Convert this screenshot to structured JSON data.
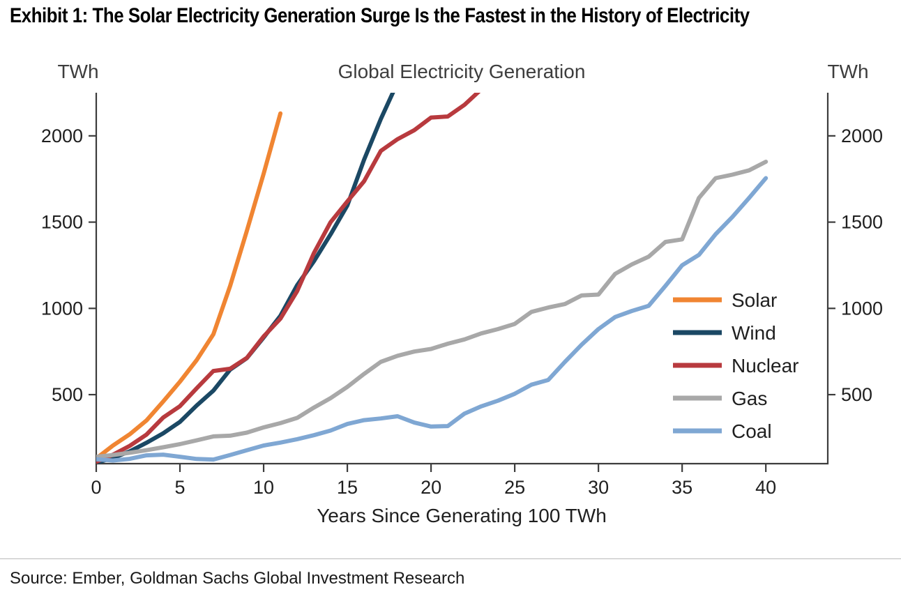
{
  "exhibit_title": "Exhibit 1: The Solar Electricity Generation Surge Is the Fastest in the History of Electricity",
  "source_line": "Source: Ember, Goldman Sachs Global Investment Research",
  "chart_data": {
    "type": "line",
    "title": "Global Electricity Generation",
    "xlabel": "Years Since Generating 100 TWh",
    "left_axis_unit": "TWh",
    "right_axis_unit": "TWh",
    "xlim": [
      0,
      43.7
    ],
    "ylim": [
      100,
      2250
    ],
    "x_ticks": [
      0,
      5,
      10,
      15,
      20,
      25,
      30,
      35,
      40
    ],
    "y_ticks": [
      500,
      1000,
      1500,
      2000
    ],
    "grid": false,
    "legend_position": "inside-right",
    "axis_color": "#3c3c3c",
    "series": [
      {
        "name": "Solar",
        "color": "#f08532",
        "x_start": 0,
        "values": [
          130,
          205,
          270,
          350,
          460,
          575,
          700,
          850,
          1130,
          1450,
          1780,
          2130
        ]
      },
      {
        "name": "Wind",
        "color": "#1b4864",
        "x_start": 0,
        "values": [
          105,
          133,
          171,
          221,
          276,
          342,
          437,
          523,
          645,
          712,
          831,
          957,
          1134,
          1273,
          1429,
          1597,
          1862,
          2098,
          2310
        ]
      },
      {
        "name": "Nuclear",
        "color": "#b83a3e",
        "x_start": 0,
        "values": [
          111,
          152,
          203,
          268,
          367,
          433,
          537,
          637,
          650,
          713,
          837,
          940,
          1100,
          1320,
          1500,
          1620,
          1737,
          1913,
          1981,
          2033,
          2106,
          2112,
          2180,
          2270
        ]
      },
      {
        "name": "Gas",
        "color": "#a8a8a8",
        "x_start": 0,
        "values": [
          140,
          150,
          163,
          178,
          195,
          213,
          235,
          258,
          262,
          280,
          310,
          335,
          365,
          425,
          480,
          545,
          620,
          690,
          725,
          750,
          765,
          795,
          820,
          855,
          880,
          910,
          980,
          1005,
          1025,
          1075,
          1080,
          1200,
          1255,
          1300,
          1385,
          1400,
          1640,
          1755,
          1775,
          1800,
          1850
        ]
      },
      {
        "name": "Coal",
        "color": "#7fa7d3",
        "x_start": 0,
        "values": [
          125,
          118,
          128,
          148,
          152,
          140,
          127,
          124,
          150,
          178,
          205,
          222,
          242,
          265,
          292,
          330,
          352,
          362,
          375,
          338,
          315,
          318,
          390,
          432,
          465,
          505,
          558,
          585,
          690,
          790,
          880,
          950,
          985,
          1015,
          1130,
          1250,
          1310,
          1430,
          1530,
          1640,
          1755
        ]
      }
    ]
  }
}
